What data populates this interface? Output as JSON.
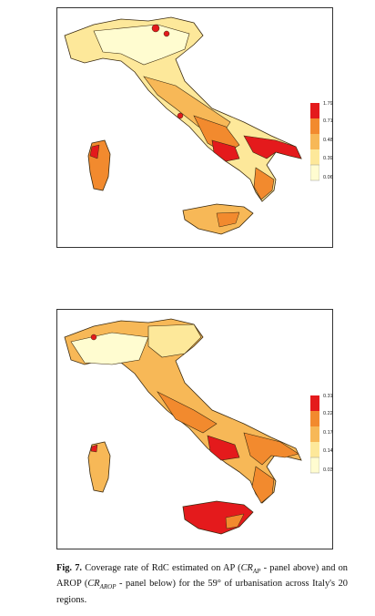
{
  "panels": [
    {
      "id": "top",
      "legend": {
        "labels": [
          "1.79",
          "0.71",
          "0.48",
          "0.39",
          "0.06"
        ],
        "colors": [
          "#e41a1c",
          "#f28a2e",
          "#f7b857",
          "#fde89a",
          "#fffcd0"
        ]
      }
    },
    {
      "id": "bottom",
      "legend": {
        "labels": [
          "0.31",
          "0.22",
          "0.17",
          "0.14",
          "0.03"
        ],
        "colors": [
          "#e41a1c",
          "#f28a2e",
          "#f7b857",
          "#fde89a",
          "#fffcd0"
        ]
      }
    }
  ],
  "caption": {
    "fig_label": "Fig. 7.",
    "text_1": " Coverage rate of RdC estimated on AP (",
    "cr": "CR",
    "ap_sub": "AP",
    "text_2": " - panel above) and on AROP (",
    "arop_sub": "AROP",
    "text_3": " - panel below) for the 59° of urbanisation across Italy's 20 regions."
  }
}
